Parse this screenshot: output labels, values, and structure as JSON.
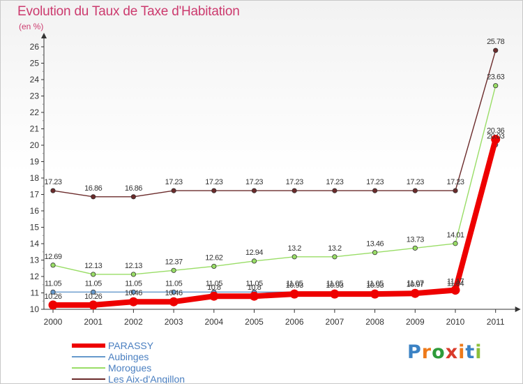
{
  "chart_data": {
    "type": "line",
    "title": "Evolution du Taux de Taxe d'Habitation",
    "unit_label": "(en %)",
    "xlabel": "",
    "ylabel": "",
    "categories": [
      "2000",
      "2001",
      "2002",
      "2003",
      "2004",
      "2005",
      "2006",
      "2007",
      "2008",
      "2009",
      "2010",
      "2011"
    ],
    "ylim": [
      10,
      26
    ],
    "yticks": [
      "10",
      "11",
      "12",
      "13",
      "14",
      "15",
      "16",
      "17",
      "18",
      "19",
      "20",
      "21",
      "22",
      "23",
      "24",
      "25",
      "26"
    ],
    "series": [
      {
        "name": "Les Aix-d'Angillon",
        "color": "#6b2b2b",
        "values": [
          17.23,
          16.86,
          16.86,
          17.23,
          17.23,
          17.23,
          17.23,
          17.23,
          17.23,
          17.23,
          17.23,
          25.78
        ],
        "labels": [
          "17.23",
          "16.86",
          "16.86",
          "17.23",
          "17.23",
          "17.23",
          "17.23",
          "17.23",
          "17.23",
          "17.23",
          "17.23",
          "25.78"
        ]
      },
      {
        "name": "Morogues",
        "color": "#99dd66",
        "values": [
          12.69,
          12.13,
          12.13,
          12.37,
          12.62,
          12.94,
          13.2,
          13.2,
          13.46,
          13.73,
          14.01,
          23.63
        ],
        "labels": [
          "12.69",
          "12.13",
          "12.13",
          "12.37",
          "12.62",
          "12.94",
          "13.2",
          "13.2",
          "13.46",
          "13.73",
          "14.01",
          "23.63"
        ]
      },
      {
        "name": "Aubinges",
        "color": "#6699cc",
        "values": [
          11.05,
          11.05,
          11.05,
          11.05,
          11.05,
          11.05,
          11.05,
          11.05,
          11.05,
          11.07,
          11.04,
          20.03
        ],
        "labels": [
          "11.05",
          "11.05",
          "11.05",
          "11.05",
          "11.05",
          "11.05",
          "11.05",
          "11.05",
          "11.05",
          "11.07",
          "11.04",
          "20.03"
        ]
      },
      {
        "name": "PARASSY",
        "color": "#ee0000",
        "values": [
          10.26,
          10.26,
          10.46,
          10.46,
          10.8,
          10.8,
          10.93,
          10.93,
          10.93,
          10.97,
          11.17,
          20.36
        ],
        "labels": [
          "10.26",
          "10.26",
          "10.46",
          "10.46",
          "10.8",
          "10.8",
          "10.93",
          "10.93",
          "10.93",
          "10.97",
          "11.17",
          "20.36"
        ]
      }
    ],
    "legend": [
      "PARASSY",
      "Aubinges",
      "Morogues",
      "Les Aix-d'Angillon"
    ],
    "legend_position": "bottom-left",
    "grid": false
  },
  "brand": {
    "letters": [
      "P",
      "r",
      "o",
      "x",
      "i",
      "t",
      "i"
    ],
    "colors": [
      "#3b82c4",
      "#ee7a1a",
      "#2e9b3a",
      "#d93a2a",
      "#ee7a1a",
      "#3b82c4",
      "#8bbf3a"
    ]
  }
}
